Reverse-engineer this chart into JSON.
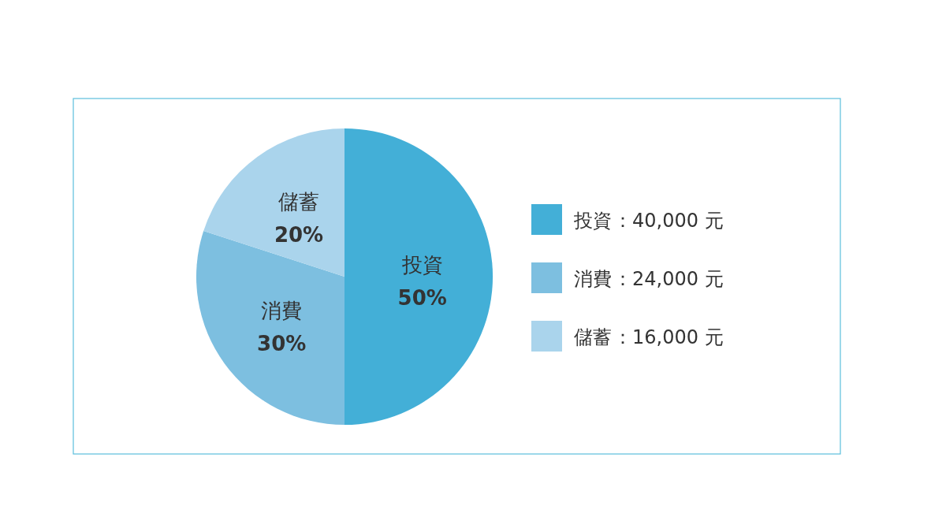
{
  "chart_data": {
    "type": "pie",
    "categories": [
      "投資",
      "消費",
      "儲蓄"
    ],
    "values": [
      40000,
      24000,
      16000
    ],
    "value_labels": [
      "：40,000 元",
      "：24,000 元",
      "：16,000 元"
    ],
    "colors": [
      "#43afd7",
      "#7dbfe0",
      "#aad4ec"
    ],
    "annotations": [
      {
        "text": "50%",
        "x": "投資"
      },
      {
        "text": "30%",
        "x": "消費"
      },
      {
        "text": "20%",
        "x": "儲蓄"
      }
    ],
    "legend": "right"
  }
}
